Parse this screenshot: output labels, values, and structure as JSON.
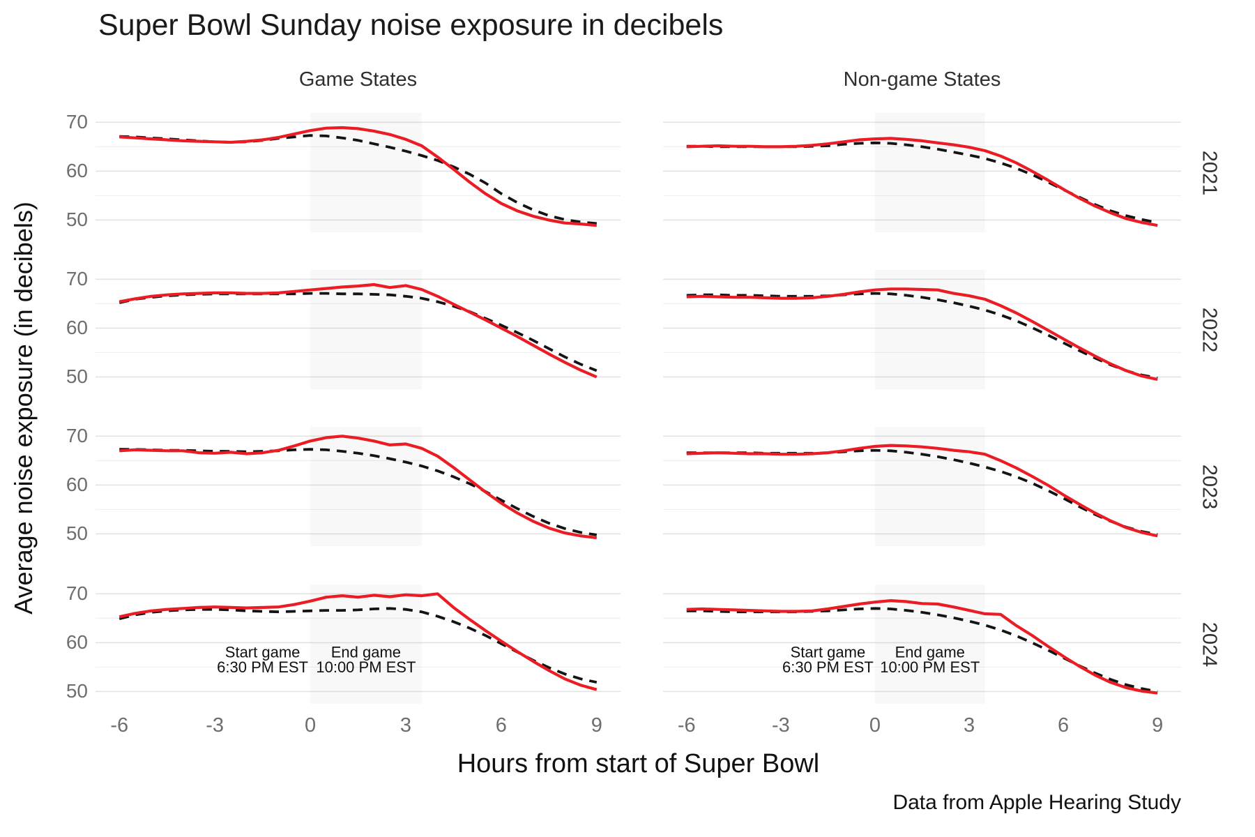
{
  "title": "Super Bowl Sunday noise exposure in decibels",
  "caption": "Data from Apple Hearing Study",
  "x_axis": {
    "title": "Hours from start of Super Bowl",
    "ticks": [
      -6,
      -3,
      0,
      3,
      6,
      9
    ]
  },
  "y_axis": {
    "title": "Average noise exposure (in decibels)",
    "ticks": [
      70,
      60,
      50
    ]
  },
  "facets": {
    "columns": [
      "Game States",
      "Non-game States"
    ],
    "rows": [
      "2021",
      "2022",
      "2023",
      "2024"
    ]
  },
  "annotations": {
    "start_label": "Start game",
    "start_time": "6:30 PM EST",
    "end_label": "End game",
    "end_time": "10:00 PM EST",
    "start_x": -1.5,
    "end_x": 1.75
  },
  "colors": {
    "red_solid_line": "#ec1c24",
    "black_dashed_line": "#141414",
    "game_window_fill": "rgba(120,120,120,0.055)",
    "grid_major": "#e3e3e3",
    "grid_minor": "#efefef",
    "axis_text": "#6e6e6e",
    "strip_text": "#2f2f2f"
  },
  "chart_data": {
    "type": "line",
    "xlabel": "Hours from start of Super Bowl",
    "ylabel": "Average noise exposure (in decibels)",
    "xlim": [
      -6.75,
      9.75
    ],
    "ylim": [
      47.5,
      71.9
    ],
    "grid_y_major": [
      50,
      60,
      70
    ],
    "grid_y_minor": [
      55,
      65
    ],
    "game_window": [
      0,
      3.5
    ],
    "x": [
      -6,
      -5.5,
      -5,
      -4.5,
      -4,
      -3.5,
      -3,
      -2.5,
      -2,
      -1.5,
      -1,
      -0.5,
      0,
      0.5,
      1,
      1.5,
      2,
      2.5,
      3,
      3.5,
      4,
      4.5,
      5,
      5.5,
      6,
      6.5,
      7,
      7.5,
      8,
      8.5,
      9
    ],
    "panels": [
      {
        "row": "2021",
        "col": "Game States",
        "red_solid": [
          67.0,
          66.8,
          66.6,
          66.4,
          66.2,
          66.1,
          66.0,
          65.9,
          66.1,
          66.4,
          66.9,
          67.6,
          68.3,
          68.8,
          68.9,
          68.7,
          68.2,
          67.5,
          66.5,
          65.2,
          62.9,
          60.4,
          57.8,
          55.4,
          53.4,
          51.9,
          50.8,
          50.0,
          49.4,
          49.2,
          48.9
        ],
        "black_dashed": [
          67.1,
          67.0,
          66.8,
          66.6,
          66.4,
          66.2,
          66.0,
          65.9,
          66.0,
          66.3,
          66.7,
          67.0,
          67.3,
          67.2,
          66.8,
          66.3,
          65.6,
          64.9,
          64.1,
          63.2,
          62.2,
          60.9,
          59.4,
          57.6,
          55.4,
          53.6,
          52.1,
          50.9,
          50.1,
          49.6,
          49.3
        ]
      },
      {
        "row": "2021",
        "col": "Non-game States",
        "red_solid": [
          65.0,
          65.1,
          65.2,
          65.1,
          65.1,
          65.0,
          65.0,
          65.1,
          65.3,
          65.6,
          66.0,
          66.4,
          66.6,
          66.7,
          66.5,
          66.2,
          65.8,
          65.4,
          64.9,
          64.2,
          63.1,
          61.7,
          60.0,
          58.2,
          56.3,
          54.5,
          52.9,
          51.5,
          50.3,
          49.5,
          48.9
        ],
        "black_dashed": [
          65.1,
          65.1,
          65.0,
          65.0,
          65.0,
          65.0,
          65.0,
          65.0,
          65.1,
          65.2,
          65.5,
          65.7,
          65.8,
          65.7,
          65.4,
          65.0,
          64.5,
          63.9,
          63.3,
          62.6,
          61.7,
          60.6,
          59.3,
          57.8,
          56.2,
          54.7,
          53.2,
          51.9,
          50.9,
          50.1,
          49.5
        ]
      },
      {
        "row": "2022",
        "col": "Game States",
        "red_solid": [
          65.4,
          66.0,
          66.5,
          66.8,
          67.0,
          67.1,
          67.2,
          67.2,
          67.1,
          67.1,
          67.2,
          67.5,
          67.8,
          68.1,
          68.4,
          68.6,
          68.9,
          68.3,
          68.7,
          67.9,
          66.5,
          64.9,
          63.3,
          61.7,
          60.0,
          58.3,
          56.5,
          54.7,
          53.0,
          51.4,
          50.0
        ],
        "black_dashed": [
          65.2,
          65.9,
          66.3,
          66.6,
          66.8,
          66.9,
          67.0,
          67.0,
          67.0,
          67.0,
          67.0,
          67.0,
          67.1,
          67.1,
          67.0,
          67.0,
          66.9,
          66.8,
          66.5,
          66.1,
          65.4,
          64.5,
          63.4,
          62.0,
          60.6,
          59.1,
          57.5,
          55.8,
          54.1,
          52.6,
          51.3
        ]
      },
      {
        "row": "2022",
        "col": "Non-game States",
        "red_solid": [
          66.4,
          66.5,
          66.4,
          66.3,
          66.3,
          66.2,
          66.1,
          66.1,
          66.2,
          66.5,
          66.9,
          67.4,
          67.8,
          68.0,
          68.0,
          67.9,
          67.8,
          67.1,
          66.6,
          65.9,
          64.6,
          63.1,
          61.4,
          59.6,
          57.8,
          56.0,
          54.3,
          52.7,
          51.3,
          50.2,
          49.5
        ],
        "black_dashed": [
          66.7,
          66.8,
          66.8,
          66.7,
          66.7,
          66.6,
          66.5,
          66.5,
          66.5,
          66.6,
          66.8,
          67.0,
          67.1,
          67.0,
          66.7,
          66.3,
          65.8,
          65.2,
          64.5,
          63.7,
          62.7,
          61.5,
          60.1,
          58.6,
          57.0,
          55.4,
          53.9,
          52.5,
          51.3,
          50.4,
          49.8
        ]
      },
      {
        "row": "2023",
        "col": "Game States",
        "red_solid": [
          67.0,
          67.2,
          67.1,
          67.0,
          67.0,
          66.6,
          66.5,
          66.7,
          66.4,
          66.6,
          67.1,
          68.0,
          69.0,
          69.7,
          70.0,
          69.6,
          69.0,
          68.2,
          68.4,
          67.5,
          65.9,
          63.6,
          61.1,
          58.6,
          56.3,
          54.3,
          52.6,
          51.2,
          50.2,
          49.6,
          49.2
        ],
        "black_dashed": [
          67.3,
          67.3,
          67.2,
          67.1,
          67.1,
          67.0,
          66.9,
          66.9,
          66.8,
          66.9,
          67.0,
          67.2,
          67.3,
          67.2,
          66.9,
          66.5,
          66.0,
          65.4,
          64.7,
          63.9,
          62.9,
          61.7,
          60.3,
          58.7,
          56.9,
          55.2,
          53.6,
          52.2,
          51.1,
          50.3,
          49.8
        ]
      },
      {
        "row": "2023",
        "col": "Non-game States",
        "red_solid": [
          66.4,
          66.5,
          66.6,
          66.5,
          66.4,
          66.4,
          66.3,
          66.3,
          66.4,
          66.6,
          67.0,
          67.5,
          67.9,
          68.1,
          68.0,
          67.8,
          67.5,
          67.1,
          66.8,
          66.3,
          65.0,
          63.5,
          61.8,
          60.0,
          58.0,
          56.1,
          54.3,
          52.7,
          51.3,
          50.3,
          49.6
        ],
        "black_dashed": [
          66.6,
          66.6,
          66.6,
          66.6,
          66.6,
          66.5,
          66.5,
          66.5,
          66.5,
          66.6,
          66.8,
          67.0,
          67.1,
          67.0,
          66.7,
          66.3,
          65.8,
          65.2,
          64.5,
          63.7,
          62.8,
          61.7,
          60.4,
          58.9,
          57.3,
          55.6,
          54.0,
          52.6,
          51.4,
          50.5,
          49.9
        ]
      },
      {
        "row": "2024",
        "col": "Game States",
        "red_solid": [
          65.3,
          66.0,
          66.5,
          66.8,
          67.0,
          67.2,
          67.3,
          67.2,
          67.1,
          67.2,
          67.3,
          67.8,
          68.5,
          69.3,
          69.6,
          69.3,
          69.7,
          69.4,
          69.8,
          69.6,
          70.0,
          67.2,
          64.8,
          62.5,
          60.3,
          58.2,
          56.2,
          54.3,
          52.6,
          51.3,
          50.4
        ],
        "black_dashed": [
          64.9,
          65.7,
          66.2,
          66.5,
          66.7,
          66.8,
          66.8,
          66.7,
          66.5,
          66.4,
          66.3,
          66.4,
          66.5,
          66.6,
          66.6,
          66.7,
          66.9,
          67.0,
          66.8,
          66.3,
          65.4,
          64.3,
          63.0,
          61.5,
          59.8,
          58.1,
          56.4,
          54.9,
          53.6,
          52.6,
          51.9
        ]
      },
      {
        "row": "2024",
        "col": "Non-game States",
        "red_solid": [
          66.8,
          66.9,
          66.8,
          66.7,
          66.6,
          66.5,
          66.4,
          66.4,
          66.5,
          66.9,
          67.4,
          67.9,
          68.3,
          68.6,
          68.4,
          68.0,
          67.9,
          67.3,
          66.6,
          65.9,
          65.8,
          63.5,
          61.5,
          59.3,
          57.2,
          55.2,
          53.4,
          51.9,
          50.8,
          50.1,
          49.7
        ],
        "black_dashed": [
          66.5,
          66.5,
          66.4,
          66.3,
          66.3,
          66.3,
          66.3,
          66.3,
          66.4,
          66.5,
          66.7,
          66.9,
          67.0,
          66.9,
          66.6,
          66.2,
          65.7,
          65.1,
          64.4,
          63.6,
          62.6,
          61.4,
          60.0,
          58.5,
          56.9,
          55.3,
          53.8,
          52.5,
          51.4,
          50.6,
          50.0
        ]
      }
    ]
  }
}
